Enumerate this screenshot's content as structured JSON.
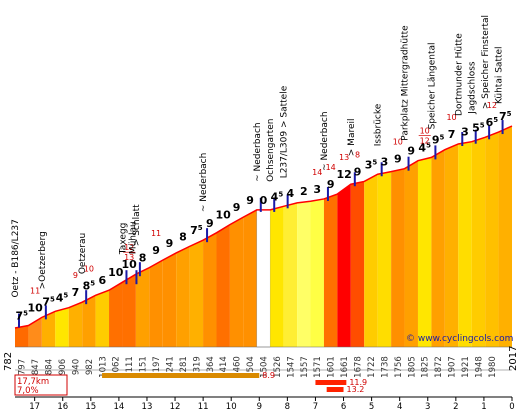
{
  "chart_data": {
    "type": "area",
    "title": "",
    "xlabel": "",
    "ylabel": "",
    "x_ticks": [
      "17",
      "16",
      "15",
      "14",
      "13",
      "12",
      "11",
      "10",
      "9",
      "8",
      "7",
      "6",
      "5",
      "4",
      "3",
      "2",
      "1",
      "0"
    ],
    "start_alt": "782",
    "end_alt": "2017",
    "segments": [
      {
        "alt": "797",
        "grade": "7",
        "sup": "5",
        "color": "#ff6a00"
      },
      {
        "alt": "847",
        "grade": "10",
        "sup": "",
        "color": "#ff8c1a"
      },
      {
        "alt": "884",
        "grade": "7",
        "sup": "5",
        "color": "#ffb000"
      },
      {
        "alt": "906",
        "grade": "4",
        "sup": "5",
        "color": "#ffe600"
      },
      {
        "alt": "940",
        "grade": "7",
        "sup": "",
        "color": "#ffb000"
      },
      {
        "alt": "982",
        "grade": "8",
        "sup": "5",
        "color": "#ffa000"
      },
      {
        "alt": "1013",
        "grade": "6",
        "sup": "",
        "color": "#ffcc00"
      },
      {
        "alt": "1062",
        "grade": "10",
        "sup": "",
        "color": "#ff7000"
      },
      {
        "alt": "1111",
        "grade": "10",
        "sup": "",
        "color": "#ff7000"
      },
      {
        "alt": "1151",
        "grade": "8",
        "sup": "",
        "color": "#ffa000"
      },
      {
        "alt": "1197",
        "grade": "9",
        "sup": "",
        "color": "#ff9000"
      },
      {
        "alt": "1241",
        "grade": "9",
        "sup": "",
        "color": "#ff9000"
      },
      {
        "alt": "1281",
        "grade": "8",
        "sup": "",
        "color": "#ffa000"
      },
      {
        "alt": "1319",
        "grade": "7",
        "sup": "5",
        "color": "#ffb000"
      },
      {
        "alt": "1364",
        "grade": "9",
        "sup": "",
        "color": "#ff9000"
      },
      {
        "alt": "1414",
        "grade": "10",
        "sup": "",
        "color": "#ff7000"
      },
      {
        "alt": "1460",
        "grade": "9",
        "sup": "",
        "color": "#ff9000"
      },
      {
        "alt": "1504",
        "grade": "9",
        "sup": "",
        "color": "#ff9000"
      },
      {
        "alt": "1504",
        "grade": "0",
        "sup": "",
        "color": "#ffffff"
      },
      {
        "alt": "1526",
        "grade": "4",
        "sup": "5",
        "color": "#ffe600"
      },
      {
        "alt": "1547",
        "grade": "4",
        "sup": "",
        "color": "#ffee33"
      },
      {
        "alt": "1557",
        "grade": "2",
        "sup": "",
        "color": "#ffff66"
      },
      {
        "alt": "1571",
        "grade": "3",
        "sup": "",
        "color": "#ffff44"
      },
      {
        "alt": "1601",
        "grade": "9",
        "sup": "",
        "color": "#ff7000"
      },
      {
        "alt": "1661",
        "grade": "12",
        "sup": "",
        "color": "#ff0000"
      },
      {
        "alt": "1678",
        "grade": "9",
        "sup": "",
        "color": "#ff4d00"
      },
      {
        "alt": "1722",
        "grade": "3",
        "sup": "5",
        "color": "#ffcc00"
      },
      {
        "alt": "1738",
        "grade": "3",
        "sup": "",
        "color": "#ffdd00"
      },
      {
        "alt": "1756",
        "grade": "9",
        "sup": "",
        "color": "#ff9000"
      },
      {
        "alt": "1805",
        "grade": "9",
        "sup": "",
        "color": "#ffa000"
      },
      {
        "alt": "1825",
        "grade": "4",
        "sup": "5",
        "color": "#ffe600"
      },
      {
        "alt": "1872",
        "grade": "9",
        "sup": "5",
        "color": "#ffa000"
      },
      {
        "alt": "1907",
        "grade": "7",
        "sup": "",
        "color": "#ffb000"
      },
      {
        "alt": "1921",
        "grade": "3",
        "sup": "",
        "color": "#ffdd00"
      },
      {
        "alt": "1948",
        "grade": "5",
        "sup": "5",
        "color": "#ffcc00"
      },
      {
        "alt": "1980",
        "grade": "6",
        "sup": "5",
        "color": "#ffc000"
      },
      {
        "alt": "",
        "grade": "7",
        "sup": "5",
        "color": "#ffb000"
      }
    ],
    "max_grades": [
      {
        "label": "11",
        "seg": 1
      },
      {
        "label": "9",
        "seg": 4
      },
      {
        "label": "10",
        "seg": 5
      },
      {
        "label": "12",
        "seg": 8,
        "sub": "13"
      },
      {
        "label": "11",
        "seg": 10
      },
      {
        "label": "14",
        "seg": 22
      },
      {
        "label": "14",
        "seg": 23
      },
      {
        "label": "13",
        "seg": 24
      },
      {
        "label": "8",
        "seg": 25
      },
      {
        "label": "10",
        "seg": 28
      },
      {
        "label": "10",
        "seg": 30,
        "sub": "12"
      },
      {
        "label": "10",
        "seg": 32
      },
      {
        "label": "12",
        "seg": 35
      }
    ],
    "places": [
      {
        "name": "Oetz - B186/L237",
        "seg": 0
      },
      {
        "name": ">Oetzerberg",
        "seg": 2
      },
      {
        "name": "Oetzerau",
        "seg": 5
      },
      {
        "name": "Taxegg",
        "seg": 8
      },
      {
        "name": "Mühlau",
        "seg": 8
      },
      {
        "name": "> Schlatt",
        "seg": 9
      },
      {
        "name": "~ Nederbach",
        "seg": 14
      },
      {
        "name": "~ Nederbach",
        "seg": 18
      },
      {
        "name": "Ochsengarten",
        "seg": 19
      },
      {
        "name": "L237/L309 > Sattele",
        "seg": 20
      },
      {
        "name": "~ Nederbach",
        "seg": 23
      },
      {
        "name": "> Mareil",
        "seg": 25
      },
      {
        "name": "Issbrücke",
        "seg": 27
      },
      {
        "name": "Parkplatz Mittergradhütte",
        "seg": 29
      },
      {
        "name": "Speicher Längental",
        "seg": 31
      },
      {
        "name": "Dortmunder Hütte",
        "seg": 33
      },
      {
        "name": "Jagdschloss",
        "seg": 34
      },
      {
        "name": "> Speicher Finstertal",
        "seg": 35
      },
      {
        "name": "Kühtai Sattel",
        "seg": 36
      }
    ],
    "stats": {
      "distance": "17,7km",
      "avg": "7,0%"
    },
    "stats_bars": [
      {
        "label": "8.9",
        "x_from": 14.6,
        "x_to": 9.0
      },
      {
        "label": "11.9",
        "x_from": 7.0,
        "x_to": 5.9
      },
      {
        "label": "13.2",
        "x_from": 6.6,
        "x_to": 6.0
      }
    ],
    "credit": "© www.cyclingcols.com",
    "colors": {
      "line": "#ff0000",
      "marker": "#1a1aa8",
      "credit": "#1a1aa8"
    }
  }
}
